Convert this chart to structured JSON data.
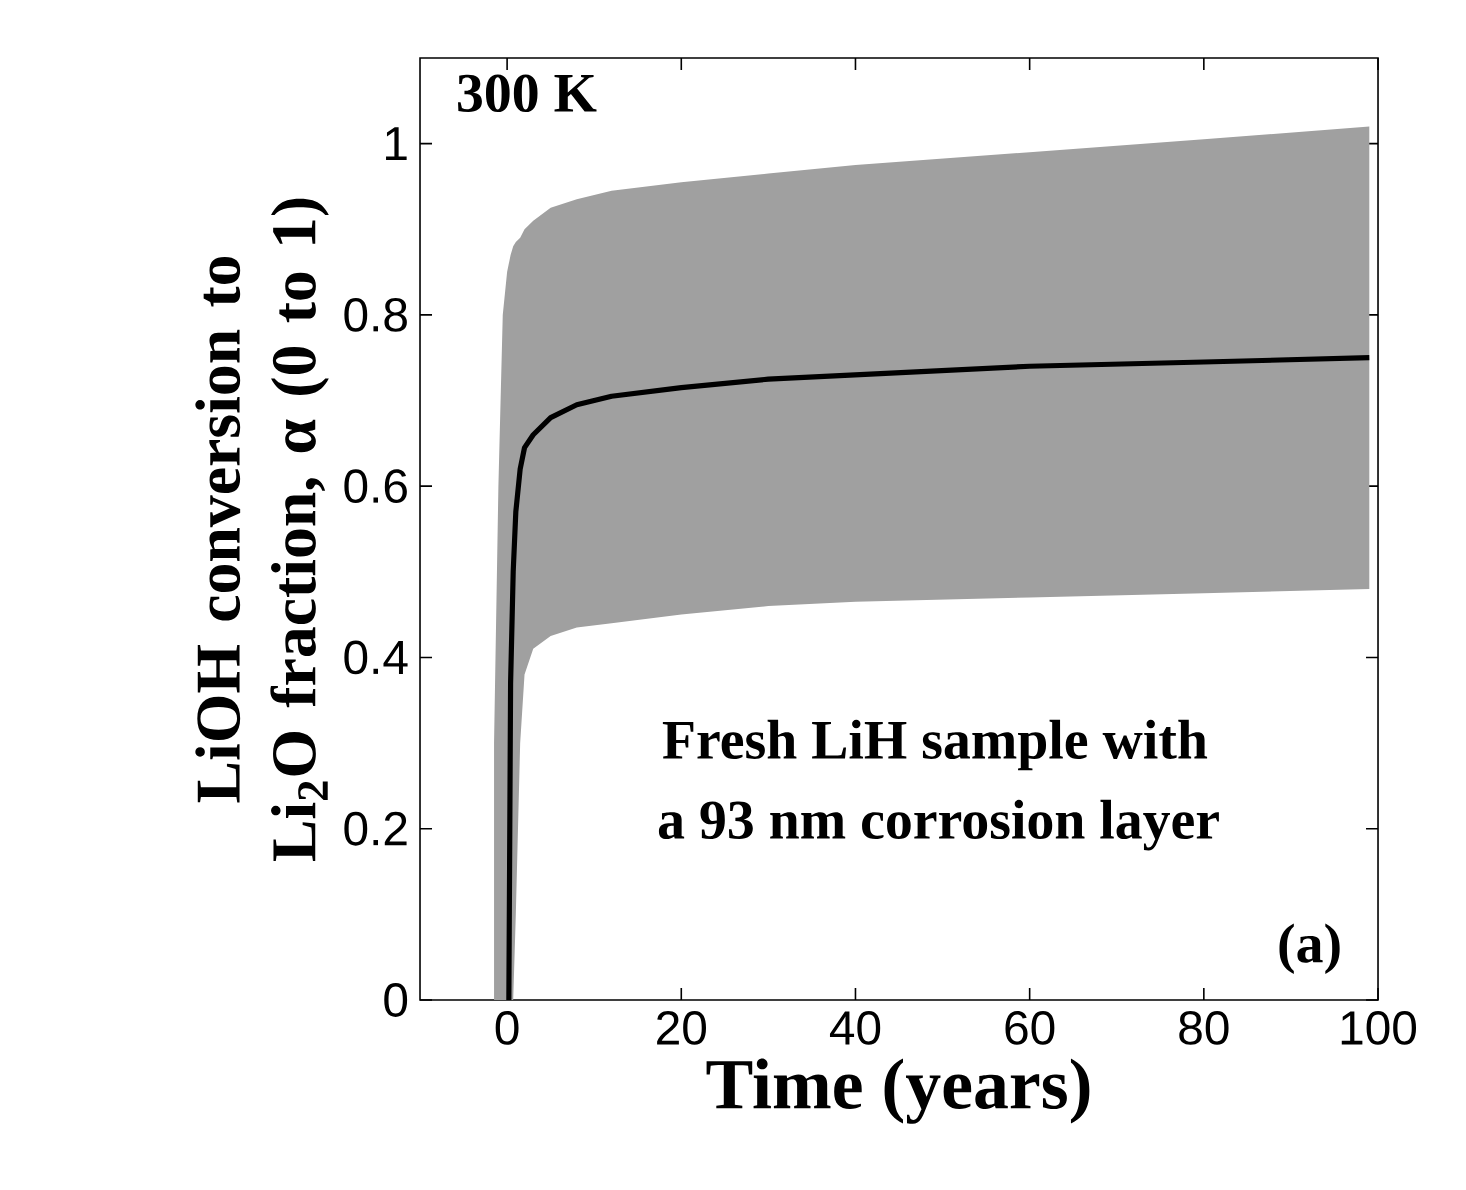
{
  "chart_data": {
    "type": "line",
    "xlabel": "Time (years)",
    "ylabel": "LiOH conversion to Li$_{2}$O fraction, α (0 to 1)",
    "annotations": [
      "300 K",
      "Fresh LiH sample with",
      "a 93 nm corrosion layer",
      "(a)"
    ],
    "x": [
      -1.5,
      -1,
      -0.5,
      0,
      0.2,
      0.4,
      0.7,
      1,
      1.5,
      2,
      3,
      5,
      8,
      12,
      20,
      30,
      40,
      60,
      80,
      99
    ],
    "series": [
      {
        "color": "#000000",
        "values": [
          null,
          null,
          null,
          null,
          0,
          0.37,
          0.5,
          0.57,
          0.62,
          0.645,
          0.66,
          0.68,
          0.695,
          0.705,
          0.715,
          0.725,
          0.73,
          0.74,
          0.745,
          0.75
        ],
        "lower": [
          0,
          0,
          0,
          0,
          0,
          0,
          0,
          0.1,
          0.3,
          0.38,
          0.41,
          0.425,
          0.435,
          0.44,
          0.45,
          0.46,
          0.465,
          0.47,
          0.475,
          0.48
        ],
        "upper": [
          0.3,
          0.6,
          0.8,
          0.85,
          0.86,
          0.87,
          0.88,
          0.885,
          0.89,
          0.9,
          0.91,
          0.925,
          0.935,
          0.945,
          0.955,
          0.965,
          0.975,
          0.99,
          1.005,
          1.02
        ]
      }
    ],
    "xlim": [
      -10,
      100
    ],
    "ylim": [
      0,
      1.1
    ],
    "xticks": [
      0,
      20,
      40,
      60,
      80,
      100
    ],
    "yticks": [
      0,
      0.2,
      0.4,
      0.6,
      0.8,
      1
    ],
    "grid": false,
    "legend": false,
    "marker": "none",
    "line_style": "solid"
  }
}
